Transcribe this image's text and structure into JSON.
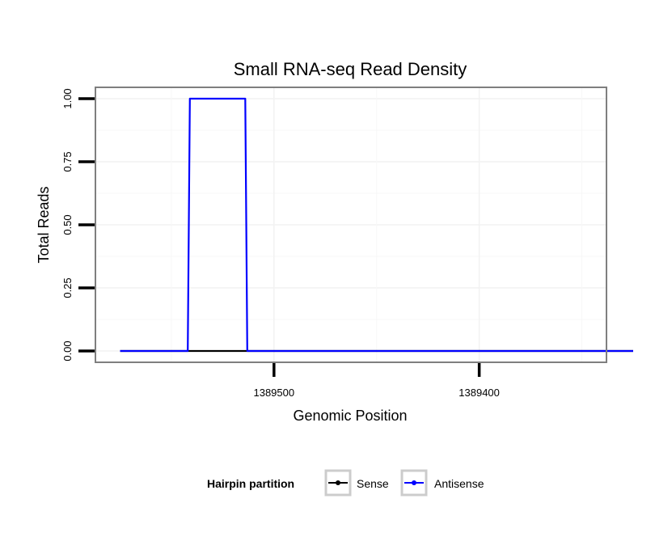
{
  "chart_data": {
    "type": "line",
    "title": "Small RNA-seq Read Density",
    "xlabel": "Genomic Position",
    "ylabel": "Total Reads",
    "x_reversed": true,
    "xlim": [
      1389587,
      1389338
    ],
    "ylim": [
      -0.045,
      1.045
    ],
    "x_ticks": [
      1389500,
      1389400
    ],
    "x_tick_labels": [
      "1389500",
      "1389400"
    ],
    "y_ticks": [
      0,
      0.25,
      0.5,
      0.75,
      1.0
    ],
    "y_tick_labels": [
      "0.00",
      "0.25",
      "0.50",
      "0.75",
      "1.00"
    ],
    "grid": true,
    "legend_position": "bottom",
    "legend_title": "Hairpin partition",
    "series": [
      {
        "name": "Sense",
        "color": "#000000",
        "x": [
          1389575,
          1389325
        ],
        "y": [
          0,
          0
        ]
      },
      {
        "name": "Antisense",
        "color": "#0000ff",
        "x": [
          1389575,
          1389542,
          1389541,
          1389514,
          1389513,
          1389325
        ],
        "y": [
          0,
          0,
          1,
          1,
          0,
          0
        ]
      }
    ]
  }
}
